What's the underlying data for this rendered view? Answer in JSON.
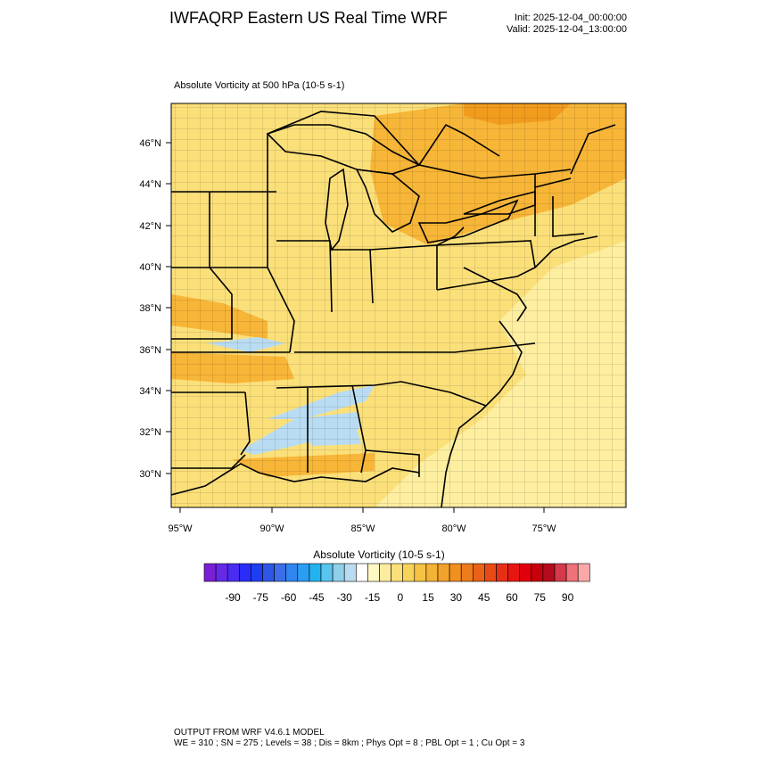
{
  "header": {
    "title": "IWFAQRP Eastern US Real Time WRF",
    "init": "Init: 2025-12-04_00:00:00",
    "valid": "Valid: 2025-12-04_13:00:00"
  },
  "map": {
    "subtitle": "Absolute Vorticity at 500 hPa   (10-5 s-1)",
    "lat_labels": [
      "46°N",
      "44°N",
      "42°N",
      "40°N",
      "38°N",
      "36°N",
      "34°N",
      "32°N",
      "30°N"
    ],
    "lon_labels": [
      "95°W",
      "90°W",
      "85°W",
      "80°W",
      "75°W"
    ],
    "colors": {
      "base": "#fbe07a",
      "light": "#fdeea0",
      "orange": "#f7b638",
      "deep_orange": "#f29c1e",
      "light_blue": "#b9dcf2",
      "border": "#000000"
    }
  },
  "colorbar": {
    "title": "Absolute Vorticity  (10-5 s-1)",
    "colors": [
      "#7a1fd6",
      "#6629e8",
      "#4b2cf2",
      "#2a2cf7",
      "#1f3ef2",
      "#2f57e6",
      "#3c6ee8",
      "#2f86f0",
      "#2a9ef2",
      "#22b3ef",
      "#59c4ee",
      "#8fcfe9",
      "#b9dcf2",
      "#ffffff",
      "#fff8c4",
      "#fdeca0",
      "#fbe07a",
      "#f8d35a",
      "#f5c244",
      "#f4b236",
      "#f2a22b",
      "#f09020",
      "#ee7b1a",
      "#ea6218",
      "#e84a17",
      "#e63015",
      "#e81612",
      "#e0000c",
      "#c8000c",
      "#b40c1c",
      "#d43a4a",
      "#ee7278",
      "#fba8a8"
    ],
    "labels": [
      "-90",
      "-75",
      "-60",
      "-45",
      "-30",
      "-15",
      "0",
      "15",
      "30",
      "45",
      "60",
      "75",
      "90"
    ]
  },
  "footer": {
    "line1": "OUTPUT FROM WRF V4.6.1 MODEL",
    "line2": "WE = 310 ; SN = 275 ; Levels = 38 ; Dis = 8km ; Phys Opt = 8 ; PBL Opt = 1 ; Cu Opt = 3"
  }
}
